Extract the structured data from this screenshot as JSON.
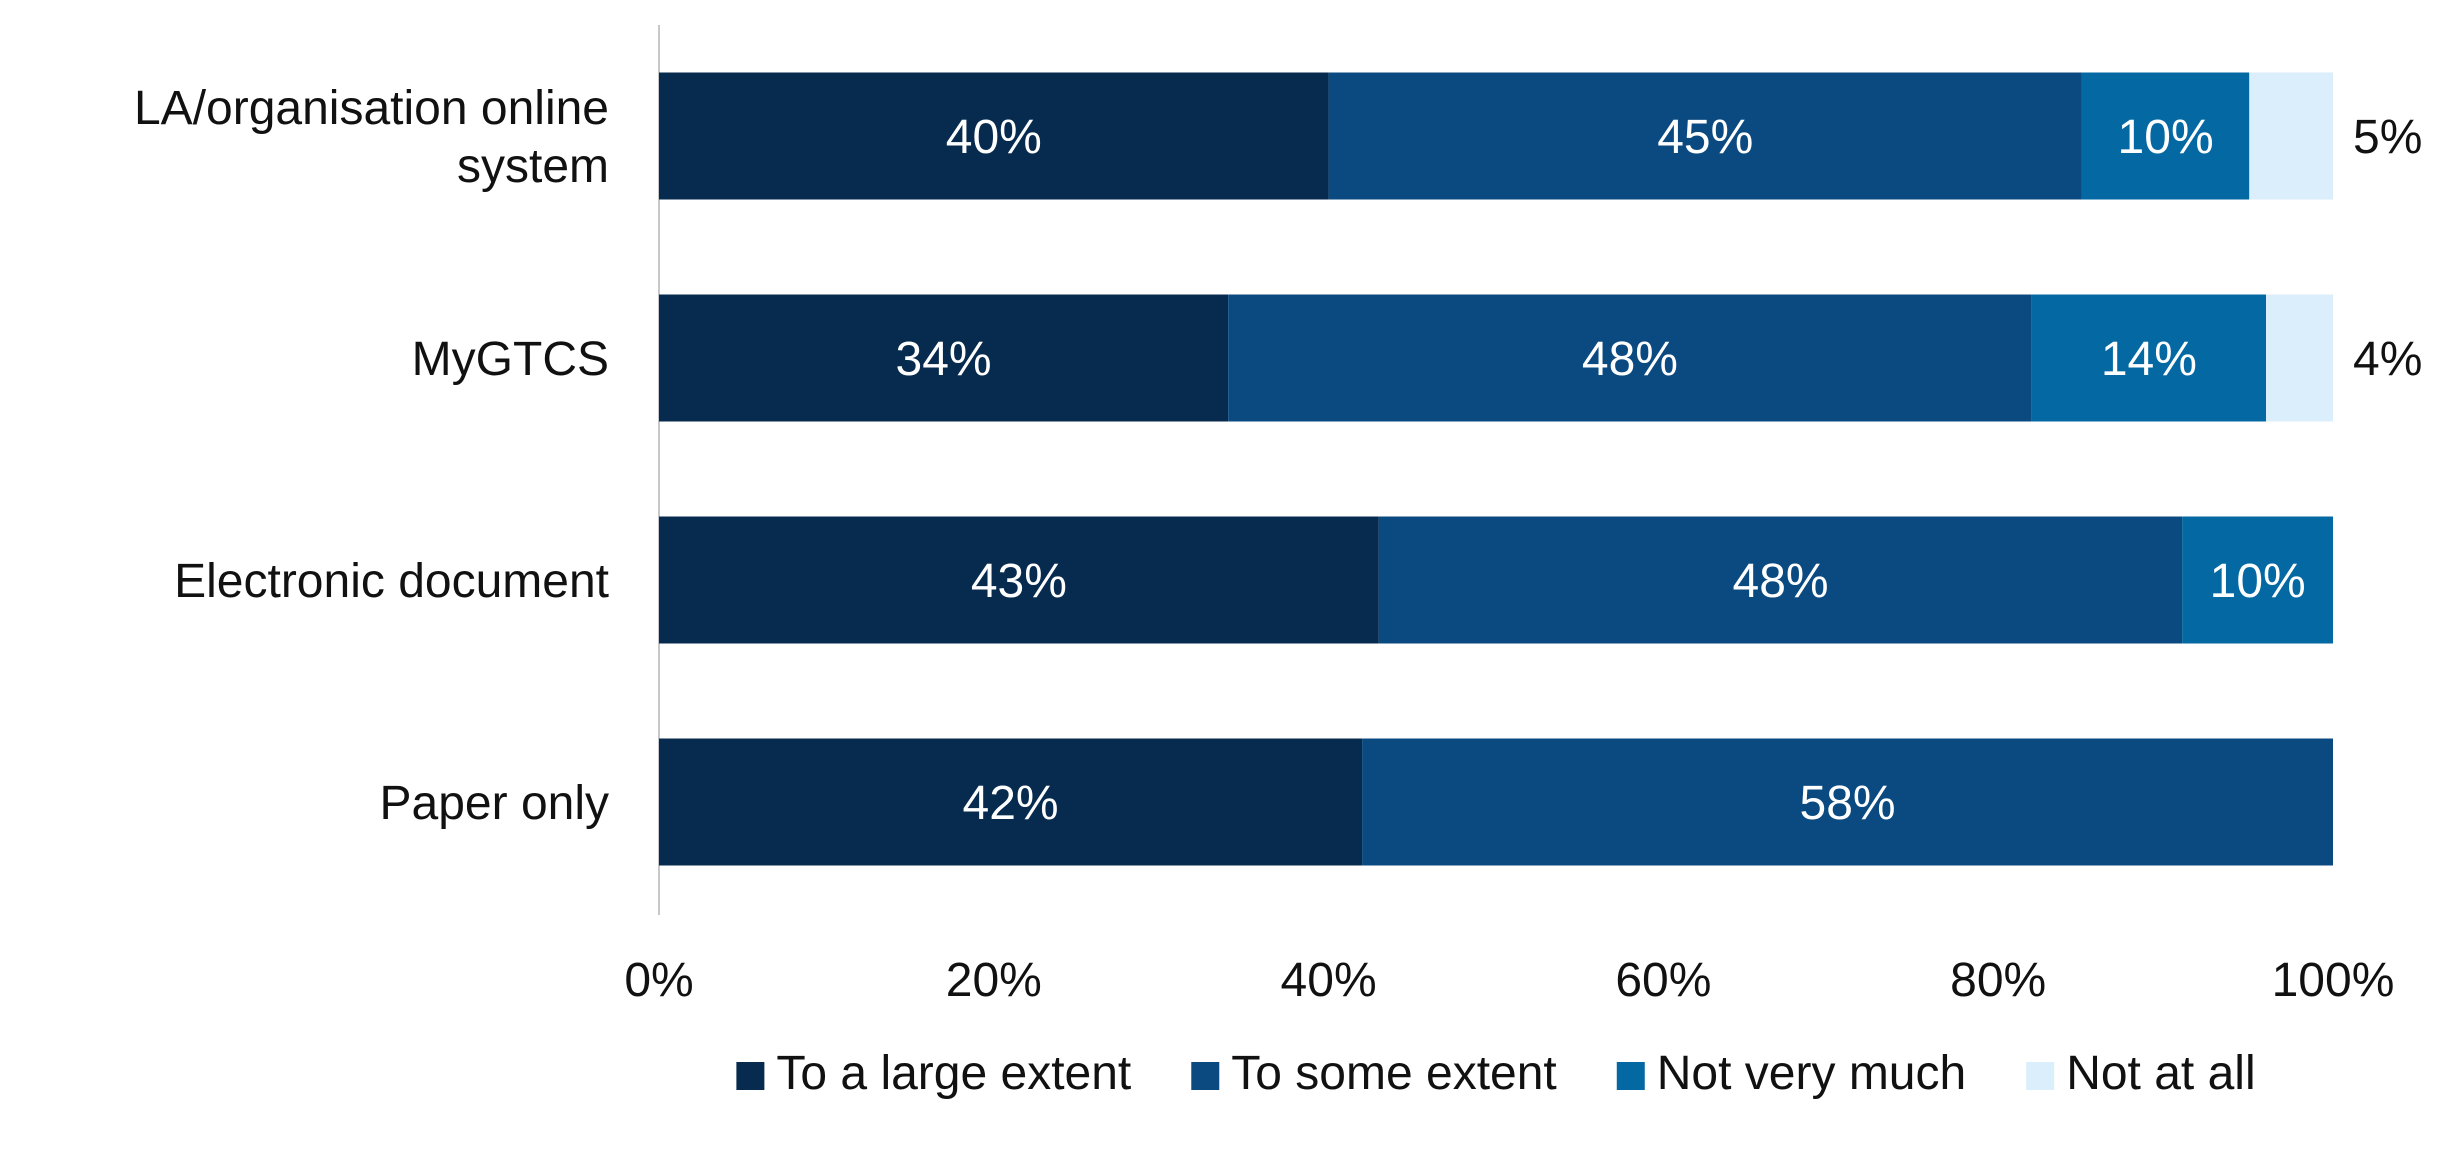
{
  "chart_data": {
    "type": "bar",
    "orientation": "horizontal",
    "stacked": true,
    "categories": [
      "LA/organisation online system",
      "MyGTCS",
      "Electronic document",
      "Paper only"
    ],
    "category_lines": [
      [
        "LA/organisation online",
        "system"
      ],
      [
        "MyGTCS"
      ],
      [
        "Electronic document"
      ],
      [
        "Paper only"
      ]
    ],
    "series": [
      {
        "name": "To a large extent",
        "values": [
          40,
          34,
          43,
          42
        ],
        "labels": [
          "40%",
          "34%",
          "43%",
          "42%"
        ],
        "color": "#072b4f",
        "label_color": "#ffffff"
      },
      {
        "name": "To some extent",
        "values": [
          45,
          48,
          48,
          58
        ],
        "labels": [
          "45%",
          "48%",
          "48%",
          "58%"
        ],
        "color": "#0b4a80",
        "label_color": "#ffffff"
      },
      {
        "name": "Not very much",
        "values": [
          10,
          14,
          10,
          0
        ],
        "labels": [
          "10%",
          "14%",
          "10%",
          ""
        ],
        "color": "#0468a3",
        "label_color": "#ffffff"
      },
      {
        "name": "Not at all",
        "values": [
          5,
          4,
          0,
          0
        ],
        "labels": [
          "5%",
          "4%",
          "",
          ""
        ],
        "color": "#dbeefb",
        "label_color": "#111111",
        "label_outside": true
      }
    ],
    "xlim": [
      0,
      100
    ],
    "xticks": [
      0,
      20,
      40,
      60,
      80,
      100
    ],
    "xtick_labels": [
      "0%",
      "20%",
      "40%",
      "60%",
      "80%",
      "100%"
    ],
    "grid": false,
    "legend_position": "bottom",
    "axis_color": "#c8c8c8"
  }
}
